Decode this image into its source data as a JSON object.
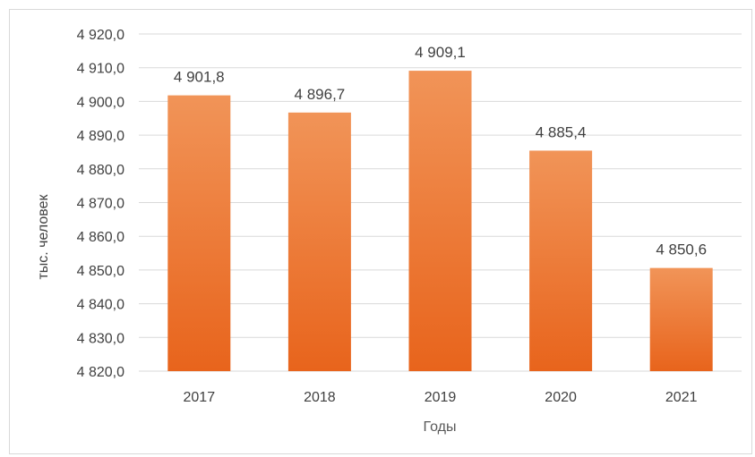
{
  "chart_data": {
    "type": "bar",
    "title": "",
    "xlabel": "Годы",
    "ylabel": "тыс. человек",
    "categories": [
      "2017",
      "2018",
      "2019",
      "2020",
      "2021"
    ],
    "values": [
      4901.8,
      4896.7,
      4909.1,
      4885.4,
      4850.6
    ],
    "value_labels": [
      "4 901,8",
      "4 896,7",
      "4 909,1",
      "4 885,4",
      "4 850,6"
    ],
    "ylim": [
      4820,
      4920
    ],
    "yticks": [
      4820,
      4830,
      4840,
      4850,
      4860,
      4870,
      4880,
      4890,
      4900,
      4910,
      4920
    ],
    "ytick_labels": [
      "4 820,0",
      "4 830,0",
      "4 840,0",
      "4 850,0",
      "4 860,0",
      "4 870,0",
      "4 880,0",
      "4 890,0",
      "4 900,0",
      "4 910,0",
      "4 920,0"
    ],
    "grid": true,
    "legend": "none",
    "colors": {
      "bar_top": "#F19458",
      "bar_bottom": "#E8641C",
      "grid": "#d9d9d9",
      "text": "#404040"
    }
  }
}
